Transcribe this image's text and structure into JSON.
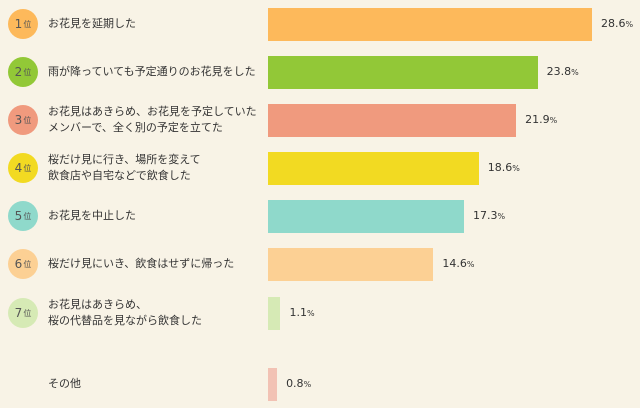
{
  "chart_data": {
    "type": "bar",
    "orientation": "horizontal",
    "unit": "%",
    "rank_suffix": "位",
    "items": [
      {
        "rank": "1",
        "label": "お花見を延期した",
        "value": 28.6,
        "color": "#fdb95b",
        "badge_color": "#fdb95b"
      },
      {
        "rank": "2",
        "label": "雨が降っていても予定通りのお花見をした",
        "value": 23.8,
        "color": "#92c837",
        "badge_color": "#92c837"
      },
      {
        "rank": "3",
        "label": "お花見はあきらめ、お花見を予定していた\nメンバーで、全く別の予定を立てた",
        "value": 21.9,
        "color": "#f09a7e",
        "badge_color": "#f09a7e"
      },
      {
        "rank": "4",
        "label": "桜だけ見に行き、場所を変えて\n飲食店や自宅などで飲食した",
        "value": 18.6,
        "color": "#f2da22",
        "badge_color": "#f2da22"
      },
      {
        "rank": "5",
        "label": "お花見を中止した",
        "value": 17.3,
        "color": "#8fd9cb",
        "badge_color": "#8fd9cb"
      },
      {
        "rank": "6",
        "label": "桜だけ見にいき、飲食はせずに帰った",
        "value": 14.6,
        "color": "#fcd094",
        "badge_color": "#fcd094"
      },
      {
        "rank": "7",
        "label": "お花見はあきらめ、\n桜の代替品を見ながら飲食した",
        "value": 1.1,
        "color": "#d6eab5",
        "badge_color": "#d6eab5"
      },
      {
        "rank": "",
        "label": "その他",
        "value": 0.8,
        "color": "#f2c2b4",
        "badge_color": ""
      }
    ]
  }
}
